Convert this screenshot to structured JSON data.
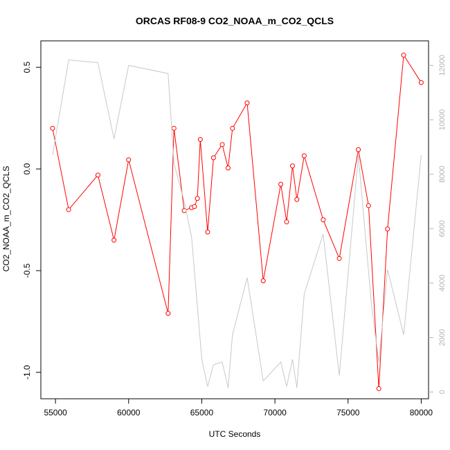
{
  "chart_data": {
    "type": "line",
    "title": "ORCAS RF08-9 CO2_NOAA_m_CO2_QCLS",
    "xlabel": "UTC Seconds",
    "ylabel": "CO2_NOAA_m_CO2_QCLS",
    "xlim": [
      54000,
      80500
    ],
    "ylim": [
      -1.13,
      0.63
    ],
    "y2lim": [
      -250,
      12900
    ],
    "x_ticks": [
      55000,
      60000,
      65000,
      70000,
      75000,
      80000
    ],
    "y_ticks": [
      -1.0,
      -0.5,
      0.0,
      0.5
    ],
    "y_tick_labels": [
      "-1.0",
      "-0.5",
      "0.0",
      "0.5"
    ],
    "y2_ticks": [
      0,
      2000,
      4000,
      6000,
      8000,
      10000,
      12000
    ],
    "grid": false,
    "series": [
      {
        "color": "#ff0000",
        "marker": "open-circle",
        "axis": "left",
        "x": [
          54800,
          55900,
          57900,
          59000,
          60000,
          62700,
          63100,
          63800,
          64300,
          64500,
          64700,
          64900,
          65400,
          65800,
          66400,
          66800,
          67100,
          68100,
          69200,
          70400,
          70800,
          71200,
          71500,
          72000,
          73300,
          74400,
          75700,
          76400,
          77100,
          77700,
          78800,
          80000
        ],
        "y": [
          0.2,
          -0.2,
          -0.03,
          -0.35,
          0.045,
          -0.71,
          0.2,
          -0.205,
          -0.19,
          -0.185,
          -0.145,
          0.145,
          -0.31,
          0.055,
          0.12,
          0.005,
          0.2,
          0.325,
          -0.55,
          -0.075,
          -0.26,
          0.015,
          -0.15,
          0.065,
          -0.25,
          -0.44,
          0.095,
          -0.18,
          -1.08,
          -0.295,
          0.56,
          0.425
        ]
      },
      {
        "color": "#c8c8c8",
        "axis": "right",
        "x": [
          54800,
          55900,
          57900,
          59000,
          60000,
          62700,
          63100,
          63800,
          64300,
          65000,
          65400,
          65800,
          66400,
          66800,
          67100,
          68100,
          69200,
          70400,
          70800,
          71200,
          71500,
          72000,
          73300,
          74400,
          75700,
          76600,
          77100,
          77700,
          78800,
          80000
        ],
        "y": [
          8700,
          12200,
          12100,
          9300,
          12000,
          11700,
          8400,
          7000,
          5700,
          1200,
          200,
          1000,
          1100,
          150,
          2100,
          4200,
          400,
          1100,
          200,
          1200,
          150,
          3600,
          5800,
          600,
          8700,
          3200,
          1100,
          4500,
          2100,
          8700
        ]
      }
    ]
  }
}
